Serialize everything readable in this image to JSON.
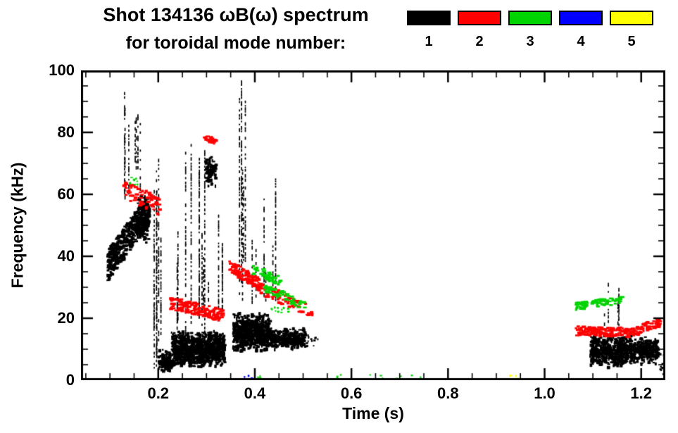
{
  "title": "Shot 134136 ωB(ω) spectrum",
  "subtitle": "for toroidal mode number:",
  "legend": {
    "modes": [
      {
        "label": "1",
        "color": "#000000"
      },
      {
        "label": "2",
        "color": "#ff0000"
      },
      {
        "label": "3",
        "color": "#00d400"
      },
      {
        "label": "4",
        "color": "#0000ff"
      },
      {
        "label": "5",
        "color": "#ffff00"
      }
    ]
  },
  "chart_data": {
    "type": "scatter",
    "title": "Shot 134136 ωB(ω) spectrum for toroidal mode number",
    "xlabel": "Time (s)",
    "ylabel": "Frequency (kHz)",
    "xlim": [
      0.04,
      1.25
    ],
    "ylim": [
      0,
      100
    ],
    "xticks": [
      {
        "v": 0.2,
        "label": "0.2"
      },
      {
        "v": 0.4,
        "label": "0.4"
      },
      {
        "v": 0.6,
        "label": "0.6"
      },
      {
        "v": 0.8,
        "label": "0.8"
      },
      {
        "v": 1.0,
        "label": "1.0"
      },
      {
        "v": 1.2,
        "label": "1.2"
      }
    ],
    "yticks": [
      {
        "v": 0,
        "label": "0"
      },
      {
        "v": 20,
        "label": "20"
      },
      {
        "v": 40,
        "label": "40"
      },
      {
        "v": 60,
        "label": "60"
      },
      {
        "v": 80,
        "label": "80"
      },
      {
        "v": 100,
        "label": "100"
      }
    ],
    "x_minor_step": 0.05,
    "y_minor_step": 5,
    "grid": false,
    "legend_position": "top-right",
    "clusters": [
      {
        "mode": 1,
        "kind": "band",
        "t": [
          0.095,
          0.178
        ],
        "f": [
          37,
          55
        ],
        "jitter": 5,
        "n": 420
      },
      {
        "mode": 1,
        "kind": "blob",
        "t": [
          0.155,
          0.182
        ],
        "f": [
          44,
          60
        ],
        "n": 160
      },
      {
        "mode": 1,
        "kind": "vspikes",
        "t": [
          0.128,
          0.162
        ],
        "fbase": [
          58,
          72
        ],
        "ftop": [
          80,
          94
        ],
        "n": 7
      },
      {
        "mode": 1,
        "kind": "vspikes",
        "t": [
          0.19,
          0.205
        ],
        "fbase": [
          3,
          18
        ],
        "ftop": [
          42,
          72
        ],
        "n": 6
      },
      {
        "mode": 1,
        "kind": "blob",
        "t": [
          0.2,
          0.228
        ],
        "f": [
          2,
          10
        ],
        "n": 110
      },
      {
        "mode": 1,
        "kind": "blob",
        "t": [
          0.228,
          0.338
        ],
        "f": [
          4,
          16
        ],
        "n": 950
      },
      {
        "mode": 1,
        "kind": "vspikes",
        "t": [
          0.225,
          0.335
        ],
        "fbase": [
          15,
          26
        ],
        "ftop": [
          30,
          93
        ],
        "n": 14
      },
      {
        "mode": 1,
        "kind": "blob",
        "t": [
          0.298,
          0.32
        ],
        "f": [
          62,
          73
        ],
        "n": 90
      },
      {
        "mode": 1,
        "kind": "blob",
        "t": [
          0.355,
          0.432
        ],
        "f": [
          9,
          22
        ],
        "n": 650
      },
      {
        "mode": 1,
        "kind": "blob",
        "t": [
          0.432,
          0.505
        ],
        "f": [
          10,
          17
        ],
        "n": 300
      },
      {
        "mode": 1,
        "kind": "vspikes",
        "t": [
          0.362,
          0.382
        ],
        "fbase": [
          24,
          40
        ],
        "ftop": [
          62,
          97
        ],
        "n": 5
      },
      {
        "mode": 1,
        "kind": "vspikes",
        "t": [
          0.39,
          0.445
        ],
        "fbase": [
          22,
          28
        ],
        "ftop": [
          34,
          66
        ],
        "n": 6
      },
      {
        "mode": 1,
        "kind": "dots",
        "t": [
          0.5,
          0.53
        ],
        "f": [
          11,
          15
        ],
        "n": 18
      },
      {
        "mode": 1,
        "kind": "blob",
        "t": [
          1.095,
          1.18
        ],
        "f": [
          4,
          15
        ],
        "n": 520
      },
      {
        "mode": 1,
        "kind": "blob",
        "t": [
          1.18,
          1.235
        ],
        "f": [
          5,
          14
        ],
        "n": 280
      },
      {
        "mode": 1,
        "kind": "vspikes",
        "t": [
          1.12,
          1.17
        ],
        "fbase": [
          15,
          20
        ],
        "ftop": [
          25,
          33
        ],
        "n": 5
      },
      {
        "mode": 1,
        "kind": "dots",
        "t": [
          1.235,
          1.25
        ],
        "f": [
          2,
          9
        ],
        "n": 16
      },
      {
        "mode": 2,
        "kind": "band",
        "t": [
          0.125,
          0.205
        ],
        "f": [
          62,
          56
        ],
        "jitter": 3,
        "n": 80
      },
      {
        "mode": 2,
        "kind": "band",
        "t": [
          0.225,
          0.335
        ],
        "f": [
          25,
          21
        ],
        "jitter": 2,
        "n": 150
      },
      {
        "mode": 2,
        "kind": "band",
        "t": [
          0.295,
          0.318
        ],
        "f": [
          79,
          77
        ],
        "jitter": 1,
        "n": 28
      },
      {
        "mode": 2,
        "kind": "band",
        "t": [
          0.348,
          0.41
        ],
        "f": [
          37,
          31
        ],
        "jitter": 2,
        "n": 110
      },
      {
        "mode": 2,
        "kind": "band",
        "t": [
          0.41,
          0.52
        ],
        "f": [
          30,
          22
        ],
        "jitter": 2,
        "n": 80
      },
      {
        "mode": 2,
        "kind": "band",
        "t": [
          1.065,
          1.19
        ],
        "f": [
          16,
          15.5
        ],
        "jitter": 1.5,
        "n": 170
      },
      {
        "mode": 2,
        "kind": "band",
        "t": [
          1.19,
          1.238
        ],
        "f": [
          16,
          19
        ],
        "jitter": 1.5,
        "n": 60
      },
      {
        "mode": 3,
        "kind": "dots",
        "t": [
          0.138,
          0.155
        ],
        "f": [
          63,
          67
        ],
        "n": 8
      },
      {
        "mode": 3,
        "kind": "band",
        "t": [
          0.395,
          0.452
        ],
        "f": [
          36,
          32
        ],
        "jitter": 1.5,
        "n": 45
      },
      {
        "mode": 3,
        "kind": "band",
        "t": [
          0.42,
          0.505
        ],
        "f": [
          30,
          24
        ],
        "jitter": 1.5,
        "n": 50
      },
      {
        "mode": 3,
        "kind": "dots",
        "t": [
          0.43,
          0.468
        ],
        "f": [
          22,
          24
        ],
        "n": 12
      },
      {
        "mode": 3,
        "kind": "band",
        "t": [
          1.065,
          1.16
        ],
        "f": [
          24,
          26
        ],
        "jitter": 1.2,
        "n": 80
      },
      {
        "mode": 3,
        "kind": "dots",
        "t": [
          0.395,
          0.41
        ],
        "f": [
          0.5,
          2
        ],
        "n": 5
      },
      {
        "mode": 3,
        "kind": "dots",
        "t": [
          0.54,
          0.76
        ],
        "f": [
          0.5,
          2
        ],
        "n": 12
      },
      {
        "mode": 4,
        "kind": "dots",
        "t": [
          0.375,
          0.395
        ],
        "f": [
          0.5,
          2
        ],
        "n": 4
      },
      {
        "mode": 5,
        "kind": "dots",
        "t": [
          0.925,
          0.945
        ],
        "f": [
          0.5,
          2
        ],
        "n": 4
      }
    ]
  }
}
